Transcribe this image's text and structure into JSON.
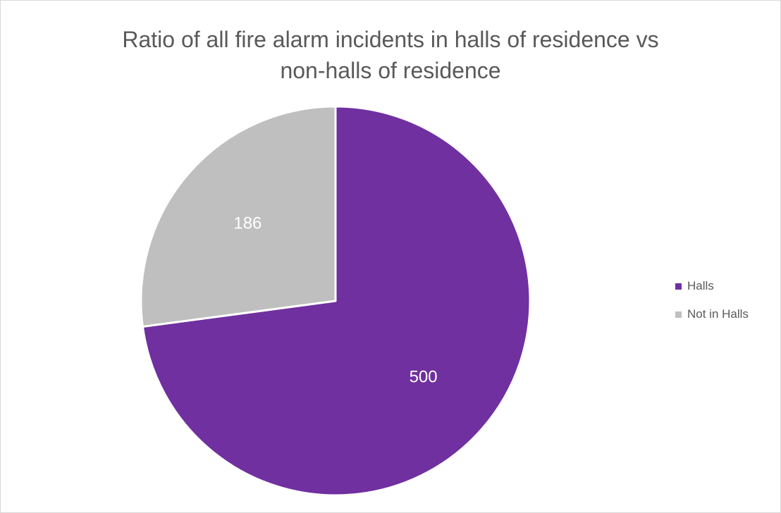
{
  "chart_data": {
    "type": "pie",
    "title_lines": [
      "Ratio of all fire alarm incidents in halls of residence vs",
      "non-halls of residence"
    ],
    "slices": [
      {
        "label": "Halls",
        "value": 500,
        "color": "#7030a0",
        "label_color": "#ffffff"
      },
      {
        "label": "Not in Halls",
        "value": 186,
        "color": "#bfbfbf",
        "label_color": "#ffffff"
      }
    ],
    "start_angle": "12 o'clock",
    "direction": "clockwise",
    "legend_position": "right"
  }
}
